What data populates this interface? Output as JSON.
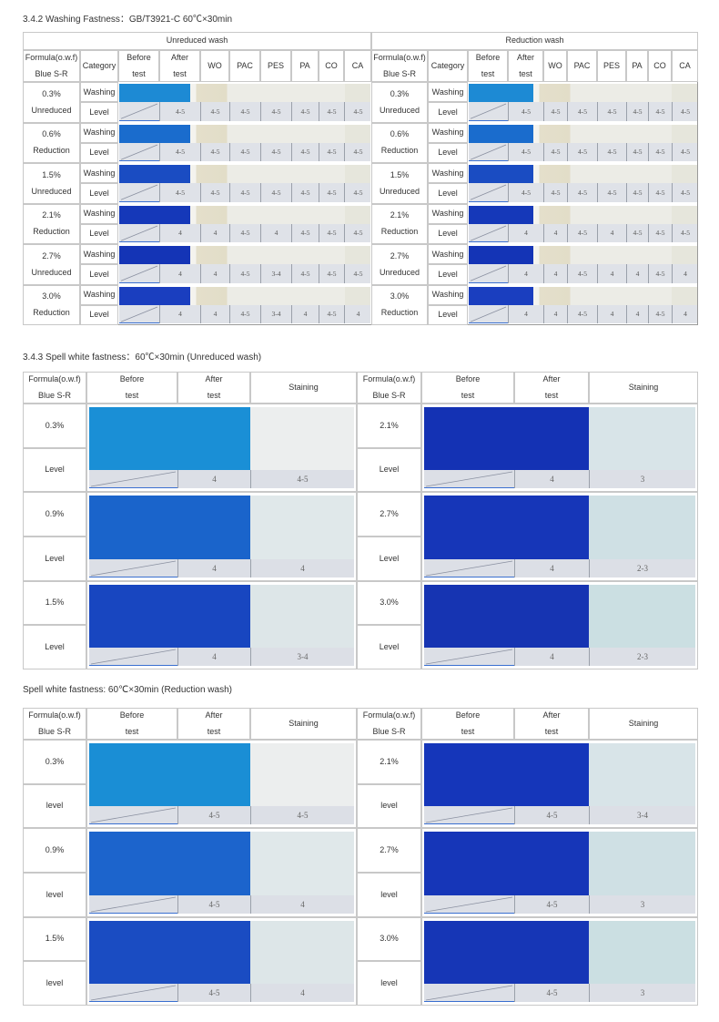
{
  "washing": {
    "title": "3.4.2 Washing Fastness：GB/T3921-C 60℃×30min",
    "formula_header": [
      "Formula(o.w.f)",
      "Blue S-R"
    ],
    "category_header": "Category",
    "before_header": [
      "Before",
      "test"
    ],
    "after_header": [
      "After",
      "test"
    ],
    "fiber_headers": [
      "WO",
      "PAC",
      "PES",
      "PA",
      "CO",
      "CA"
    ],
    "halves": [
      {
        "label": "Unreduced wash",
        "rows": [
          {
            "formula": "0.3%",
            "process": "Unreduced",
            "categories": [
              "Washing",
              "Level"
            ],
            "grades": [
              "4-5",
              "4-5",
              "4-5",
              "4-5",
              "4-5",
              "4-5",
              "4-5"
            ]
          },
          {
            "formula": "0.6%",
            "process": "Reduction",
            "categories": [
              "Washing",
              "Level"
            ],
            "grades": [
              "4-5",
              "4-5",
              "4-5",
              "4-5",
              "4-5",
              "4-5",
              "4-5"
            ]
          },
          {
            "formula": "1.5%",
            "process": "Unreduced",
            "categories": [
              "Washing",
              "Level"
            ],
            "grades": [
              "4-5",
              "4-5",
              "4-5",
              "4-5",
              "4-5",
              "4-5",
              "4-5"
            ]
          },
          {
            "formula": "2.1%",
            "process": "Reduction",
            "categories": [
              "Washing",
              "Level"
            ],
            "grades": [
              "4",
              "4",
              "4-5",
              "4",
              "4-5",
              "4-5",
              "4-5"
            ]
          },
          {
            "formula": "2.7%",
            "process": "Unreduced",
            "categories": [
              "Washing",
              "Level"
            ],
            "grades": [
              "4",
              "4",
              "4-5",
              "3-4",
              "4-5",
              "4-5",
              "4-5"
            ]
          },
          {
            "formula": "3.0%",
            "process": "Reduction",
            "categories": [
              "Washing",
              "Level"
            ],
            "grades": [
              "4",
              "4",
              "4-5",
              "3-4",
              "4",
              "4-5",
              "4"
            ]
          }
        ]
      },
      {
        "label": "Reduction wash",
        "rows": [
          {
            "formula": "0.3%",
            "process": "Unreduced",
            "categories": [
              "Washing",
              "Level"
            ],
            "grades": [
              "4-5",
              "4-5",
              "4-5",
              "4-5",
              "4-5",
              "4-5",
              "4-5"
            ]
          },
          {
            "formula": "0.6%",
            "process": "Reduction",
            "categories": [
              "Washing",
              "Level"
            ],
            "grades": [
              "4-5",
              "4-5",
              "4-5",
              "4-5",
              "4-5",
              "4-5",
              "4-5"
            ]
          },
          {
            "formula": "1.5%",
            "process": "Unreduced",
            "categories": [
              "Washing",
              "Level"
            ],
            "grades": [
              "4-5",
              "4-5",
              "4-5",
              "4-5",
              "4-5",
              "4-5",
              "4-5"
            ]
          },
          {
            "formula": "2.1%",
            "process": "Reduction",
            "categories": [
              "Washing",
              "Level"
            ],
            "grades": [
              "4",
              "4",
              "4-5",
              "4",
              "4-5",
              "4-5",
              "4-5"
            ]
          },
          {
            "formula": "2.7%",
            "process": "Unreduced",
            "categories": [
              "Washing",
              "Level"
            ],
            "grades": [
              "4",
              "4",
              "4-5",
              "4",
              "4",
              "4-5",
              "4"
            ]
          },
          {
            "formula": "3.0%",
            "process": "Reduction",
            "categories": [
              "Washing",
              "Level"
            ],
            "grades": [
              "4",
              "4",
              "4-5",
              "4",
              "4",
              "4-5",
              "4"
            ]
          }
        ]
      }
    ]
  },
  "spell_tables": [
    {
      "title": "3.4.3 Spell white fastness：60℃×30min (Unreduced wash)",
      "formula_header": [
        "Formula(o.w.f)",
        "Blue S-R"
      ],
      "before_header": [
        "Before",
        "test"
      ],
      "after_header": [
        "After",
        "test"
      ],
      "staining_header": "Staining",
      "halves": [
        {
          "rows": [
            {
              "formula": "0.3%",
              "level_label": "Level",
              "grades": [
                "4",
                "4-5"
              ]
            },
            {
              "formula": "0.9%",
              "level_label": "Level",
              "grades": [
                "4",
                "4"
              ]
            },
            {
              "formula": "1.5%",
              "level_label": "Level",
              "grades": [
                "4",
                "3-4"
              ]
            }
          ]
        },
        {
          "rows": [
            {
              "formula": "2.1%",
              "level_label": "Level",
              "grades": [
                "4",
                "3"
              ]
            },
            {
              "formula": "2.7%",
              "level_label": "Level",
              "grades": [
                "4",
                "2-3"
              ]
            },
            {
              "formula": "3.0%",
              "level_label": "Level",
              "grades": [
                "4",
                "2-3"
              ]
            }
          ]
        }
      ]
    },
    {
      "title": "Spell white fastness: 60℃×30min (Reduction wash)",
      "formula_header": [
        "Formula(o.w.f)",
        "Blue S-R"
      ],
      "before_header": [
        "Before",
        "test"
      ],
      "after_header": [
        "After",
        "test"
      ],
      "staining_header": "Staining",
      "halves": [
        {
          "rows": [
            {
              "formula": "0.3%",
              "level_label": "level",
              "grades": [
                "4-5",
                "4-5"
              ]
            },
            {
              "formula": "0.9%",
              "level_label": "level",
              "grades": [
                "4-5",
                "4"
              ]
            },
            {
              "formula": "1.5%",
              "level_label": "level",
              "grades": [
                "4-5",
                "4"
              ]
            }
          ]
        },
        {
          "rows": [
            {
              "formula": "2.1%",
              "level_label": "level",
              "grades": [
                "4-5",
                "3-4"
              ]
            },
            {
              "formula": "2.7%",
              "level_label": "level",
              "grades": [
                "4-5",
                "3"
              ]
            },
            {
              "formula": "3.0%",
              "level_label": "level",
              "grades": [
                "4-5",
                "3"
              ]
            }
          ]
        }
      ]
    }
  ]
}
